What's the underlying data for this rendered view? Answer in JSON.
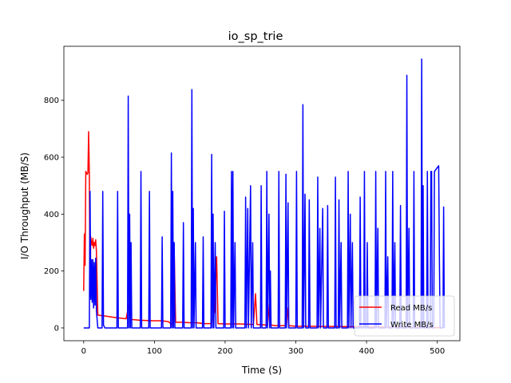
{
  "chart_data": {
    "type": "line",
    "title": "io_sp_trie",
    "xlabel": "Time (S)",
    "ylabel": "I/O Throughput (MB/S)",
    "xlim": [
      -28,
      532
    ],
    "ylim": [
      -45,
      990
    ],
    "x_ticks": [
      0,
      100,
      200,
      300,
      400,
      500
    ],
    "y_ticks": [
      0,
      200,
      400,
      600,
      800
    ],
    "grid": false,
    "legend_position": "lower-right",
    "series": [
      {
        "name": "Read MB/s",
        "color": "#ff0000",
        "points": [
          [
            0,
            130
          ],
          [
            1,
            330
          ],
          [
            2,
            220
          ],
          [
            3,
            550
          ],
          [
            5,
            540
          ],
          [
            6,
            545
          ],
          [
            7,
            690
          ],
          [
            8,
            540
          ],
          [
            9,
            110
          ],
          [
            10,
            320
          ],
          [
            11,
            300
          ],
          [
            12,
            290
          ],
          [
            13,
            315
          ],
          [
            14,
            280
          ],
          [
            15,
            300
          ],
          [
            16,
            290
          ],
          [
            17,
            310
          ],
          [
            18,
            270
          ],
          [
            20,
            45
          ],
          [
            30,
            42
          ],
          [
            40,
            38
          ],
          [
            50,
            35
          ],
          [
            60,
            32
          ],
          [
            65,
            95
          ],
          [
            66,
            30
          ],
          [
            80,
            27
          ],
          [
            100,
            25
          ],
          [
            110,
            25
          ],
          [
            120,
            22
          ],
          [
            125,
            10
          ],
          [
            128,
            270
          ],
          [
            130,
            20
          ],
          [
            140,
            20
          ],
          [
            150,
            18
          ],
          [
            160,
            18
          ],
          [
            170,
            15
          ],
          [
            180,
            15
          ],
          [
            185,
            55
          ],
          [
            188,
            250
          ],
          [
            190,
            15
          ],
          [
            200,
            14
          ],
          [
            220,
            14
          ],
          [
            240,
            12
          ],
          [
            243,
            120
          ],
          [
            245,
            12
          ],
          [
            260,
            10
          ],
          [
            263,
            90
          ],
          [
            265,
            10
          ],
          [
            270,
            8
          ],
          [
            285,
            8
          ],
          [
            288,
            70
          ],
          [
            290,
            8
          ],
          [
            300,
            6
          ],
          [
            320,
            6
          ],
          [
            340,
            5
          ],
          [
            360,
            5
          ],
          [
            380,
            4
          ],
          [
            390,
            4
          ],
          [
            400,
            4
          ],
          [
            420,
            3
          ],
          [
            440,
            3
          ],
          [
            450,
            2
          ],
          [
            460,
            2
          ],
          [
            480,
            2
          ],
          [
            500,
            1
          ],
          [
            508,
            1
          ]
        ]
      },
      {
        "name": "Write MB/s",
        "color": "#0000ff",
        "points": [
          [
            0,
            0
          ],
          [
            8,
            0
          ],
          [
            9,
            480
          ],
          [
            10,
            100
          ],
          [
            11,
            240
          ],
          [
            12,
            90
          ],
          [
            13,
            240
          ],
          [
            14,
            70
          ],
          [
            15,
            230
          ],
          [
            16,
            80
          ],
          [
            17,
            245
          ],
          [
            18,
            60
          ],
          [
            20,
            0
          ],
          [
            26,
            0
          ],
          [
            27,
            480
          ],
          [
            28,
            10
          ],
          [
            30,
            0
          ],
          [
            47,
            0
          ],
          [
            48,
            480
          ],
          [
            49,
            0
          ],
          [
            62,
            0
          ],
          [
            63,
            815
          ],
          [
            64,
            0
          ],
          [
            65,
            400
          ],
          [
            66,
            0
          ],
          [
            67,
            300
          ],
          [
            68,
            0
          ],
          [
            80,
            0
          ],
          [
            81,
            550
          ],
          [
            82,
            0
          ],
          [
            92,
            0
          ],
          [
            93,
            480
          ],
          [
            94,
            0
          ],
          [
            110,
            0
          ],
          [
            111,
            320
          ],
          [
            112,
            0
          ],
          [
            123,
            0
          ],
          [
            124,
            615
          ],
          [
            125,
            0
          ],
          [
            126,
            480
          ],
          [
            127,
            0
          ],
          [
            128,
            300
          ],
          [
            129,
            0
          ],
          [
            140,
            0
          ],
          [
            141,
            370
          ],
          [
            142,
            0
          ],
          [
            152,
            0
          ],
          [
            153,
            838
          ],
          [
            154,
            0
          ],
          [
            155,
            420
          ],
          [
            156,
            0
          ],
          [
            158,
            300
          ],
          [
            159,
            0
          ],
          [
            168,
            0
          ],
          [
            169,
            320
          ],
          [
            170,
            0
          ],
          [
            180,
            0
          ],
          [
            181,
            610
          ],
          [
            182,
            0
          ],
          [
            183,
            400
          ],
          [
            184,
            0
          ],
          [
            186,
            300
          ],
          [
            187,
            0
          ],
          [
            198,
            0
          ],
          [
            199,
            410
          ],
          [
            200,
            0
          ],
          [
            208,
            0
          ],
          [
            209,
            550
          ],
          [
            210,
            0
          ],
          [
            211,
            550
          ],
          [
            212,
            0
          ],
          [
            214,
            300
          ],
          [
            215,
            0
          ],
          [
            228,
            0
          ],
          [
            229,
            460
          ],
          [
            230,
            0
          ],
          [
            232,
            420
          ],
          [
            233,
            0
          ],
          [
            236,
            500
          ],
          [
            237,
            0
          ],
          [
            239,
            300
          ],
          [
            240,
            0
          ],
          [
            250,
            0
          ],
          [
            251,
            500
          ],
          [
            252,
            0
          ],
          [
            258,
            0
          ],
          [
            259,
            550
          ],
          [
            260,
            0
          ],
          [
            262,
            400
          ],
          [
            263,
            0
          ],
          [
            264,
            200
          ],
          [
            265,
            0
          ],
          [
            275,
            0
          ],
          [
            276,
            550
          ],
          [
            277,
            0
          ],
          [
            285,
            0
          ],
          [
            286,
            540
          ],
          [
            287,
            0
          ],
          [
            289,
            440
          ],
          [
            290,
            0
          ],
          [
            300,
            0
          ],
          [
            301,
            550
          ],
          [
            302,
            0
          ],
          [
            309,
            0
          ],
          [
            310,
            785
          ],
          [
            311,
            0
          ],
          [
            313,
            470
          ],
          [
            314,
            0
          ],
          [
            318,
            0
          ],
          [
            319,
            450
          ],
          [
            320,
            0
          ],
          [
            330,
            0
          ],
          [
            331,
            530
          ],
          [
            332,
            0
          ],
          [
            334,
            350
          ],
          [
            335,
            0
          ],
          [
            338,
            420
          ],
          [
            339,
            0
          ],
          [
            344,
            0
          ],
          [
            345,
            430
          ],
          [
            346,
            0
          ],
          [
            355,
            0
          ],
          [
            356,
            530
          ],
          [
            357,
            0
          ],
          [
            360,
            0
          ],
          [
            361,
            450
          ],
          [
            362,
            0
          ],
          [
            364,
            300
          ],
          [
            365,
            0
          ],
          [
            373,
            0
          ],
          [
            374,
            550
          ],
          [
            375,
            0
          ],
          [
            377,
            400
          ],
          [
            378,
            0
          ],
          [
            380,
            300
          ],
          [
            381,
            0
          ],
          [
            390,
            0
          ],
          [
            391,
            460
          ],
          [
            392,
            0
          ],
          [
            396,
            0
          ],
          [
            397,
            550
          ],
          [
            398,
            0
          ],
          [
            400,
            0
          ],
          [
            401,
            300
          ],
          [
            402,
            0
          ],
          [
            412,
            0
          ],
          [
            413,
            550
          ],
          [
            414,
            0
          ],
          [
            416,
            350
          ],
          [
            417,
            0
          ],
          [
            426,
            0
          ],
          [
            427,
            550
          ],
          [
            428,
            0
          ],
          [
            430,
            250
          ],
          [
            431,
            0
          ],
          [
            436,
            0
          ],
          [
            437,
            550
          ],
          [
            438,
            0
          ],
          [
            440,
            300
          ],
          [
            441,
            0
          ],
          [
            447,
            0
          ],
          [
            448,
            430
          ],
          [
            449,
            0
          ],
          [
            456,
            0
          ],
          [
            457,
            888
          ],
          [
            458,
            0
          ],
          [
            460,
            350
          ],
          [
            461,
            0
          ],
          [
            466,
            0
          ],
          [
            467,
            550
          ],
          [
            468,
            0
          ],
          [
            477,
            0
          ],
          [
            478,
            945
          ],
          [
            479,
            0
          ],
          [
            480,
            500
          ],
          [
            481,
            0
          ],
          [
            485,
            0
          ],
          [
            486,
            550
          ],
          [
            487,
            0
          ],
          [
            490,
            0
          ],
          [
            491,
            550
          ],
          [
            492,
            550
          ],
          [
            493,
            0
          ],
          [
            495,
            0
          ],
          [
            496,
            550
          ],
          [
            499,
            560
          ],
          [
            502,
            570
          ],
          [
            503,
            250
          ],
          [
            504,
            0
          ],
          [
            508,
            0
          ],
          [
            509,
            425
          ],
          [
            510,
            0
          ]
        ]
      }
    ]
  }
}
